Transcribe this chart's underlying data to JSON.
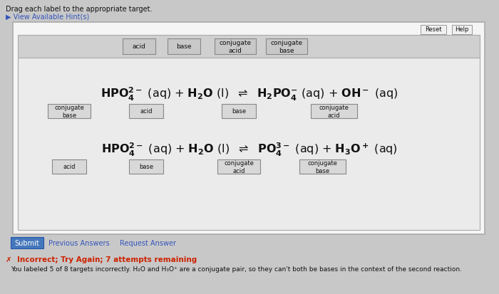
{
  "title_top": "Drag each label to the appropriate target.",
  "hint_text": "▶ View Available Hint(s)",
  "bg_outer": "#c8c8c8",
  "bg_main_box": "#e0e0e0",
  "bg_label_row": "#d0d0d0",
  "bg_content": "#e8e8e8",
  "border_color": "#888888",
  "button_face": "#d0d0d0",
  "reset_help_face": "#f0f0f0",
  "label_buttons": [
    "acid",
    "base",
    "conjugate\nacid",
    "conjugate\nbase"
  ],
  "reaction1_labels": [
    "conjugate\nbase",
    "acid",
    "base",
    "conjugate\nacid"
  ],
  "reaction2_labels": [
    "acid",
    "base",
    "conjugate\nacid",
    "conjugate\nbase"
  ],
  "submit_text": "Submit",
  "previous_text": "Previous Answers",
  "request_text": "Request Answer",
  "error_text": "✗  Incorrect; Try Again; 7 attempts remaining",
  "error_detail": "You labeled 5 of 8 targets incorrectly. H₂O and H₃O⁺ are a conjugate pair, so they can't both be bases in the context of the second reaction.",
  "font_color_dark": "#111111",
  "font_color_blue": "#3355bb",
  "font_color_red": "#cc2200",
  "submit_bg": "#4477bb",
  "submit_fg": "#ffffff"
}
